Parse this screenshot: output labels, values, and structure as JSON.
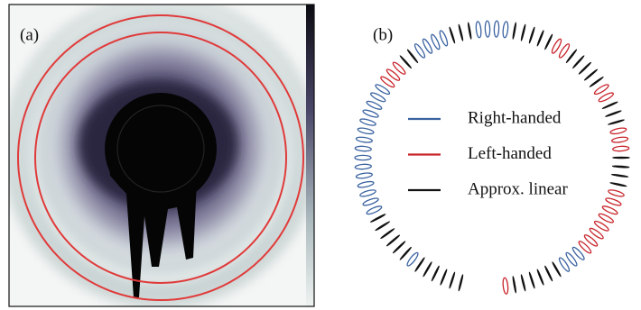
{
  "panel_a": {
    "label": "(a)"
  },
  "panel_b": {
    "label": "(b)",
    "legend": [
      {
        "name": "Right-handed",
        "color": "#3a62a0"
      },
      {
        "name": "Left-handed",
        "color": "#c8242b"
      },
      {
        "name": "Approx. linear",
        "color": "#111111"
      }
    ]
  }
}
